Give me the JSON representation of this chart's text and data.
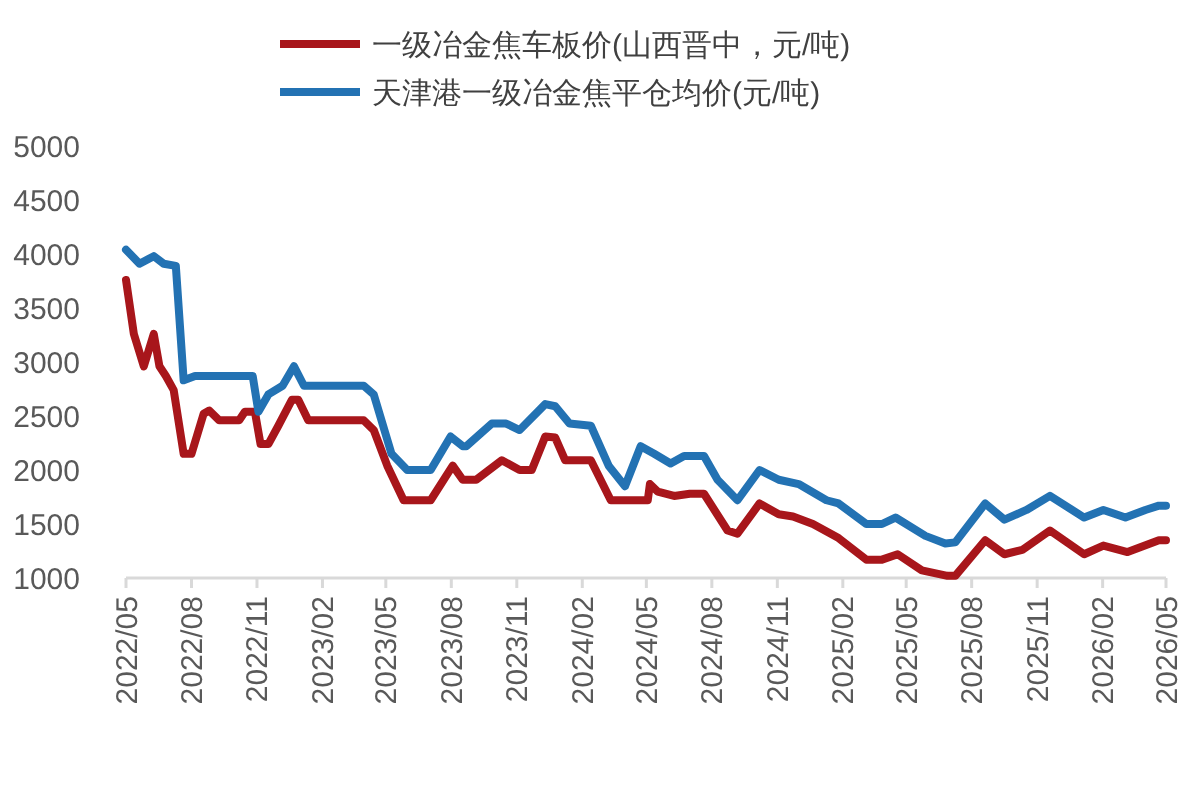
{
  "chart_data": {
    "type": "line",
    "legend": "top",
    "grid": false,
    "line_style": "solid",
    "marker": "none",
    "xlim": [
      "2022-05-01",
      "2026-05-01"
    ],
    "xticks": [
      {
        "value": "2022-05-01",
        "label": "2022/05"
      },
      {
        "value": "2022-08-01",
        "label": "2022/08"
      },
      {
        "value": "2022-11-01",
        "label": "2022/11"
      },
      {
        "value": "2023-02-01",
        "label": "2023/02"
      },
      {
        "value": "2023-05-01",
        "label": "2023/05"
      },
      {
        "value": "2023-08-01",
        "label": "2023/08"
      },
      {
        "value": "2023-11-01",
        "label": "2023/11"
      },
      {
        "value": "2024-02-01",
        "label": "2024/02"
      },
      {
        "value": "2024-05-01",
        "label": "2024/05"
      },
      {
        "value": "2024-08-01",
        "label": "2024/08"
      },
      {
        "value": "2024-11-01",
        "label": "2024/11"
      },
      {
        "value": "2025-02-01",
        "label": "2025/02"
      },
      {
        "value": "2025-05-01",
        "label": "2025/05"
      },
      {
        "value": "2025-08-01",
        "label": "2025/08"
      },
      {
        "value": "2025-11-01",
        "label": "2025/11"
      },
      {
        "value": "2026-02-01",
        "label": "2026/02"
      },
      {
        "value": "2026-05-01",
        "label": "2026/05"
      }
    ],
    "ylim": [
      1000,
      5000
    ],
    "yticks": [
      1000,
      1500,
      2000,
      2500,
      3000,
      3500,
      4000,
      4500,
      5000
    ],
    "series": [
      {
        "name": "一级冶金焦车板价(山西晋中，元/吨)",
        "color": "#a8161b",
        "x": [
          "2022-05-01",
          "2022-05-12",
          "2022-05-26",
          "2022-06-09",
          "2022-06-17",
          "2022-06-26",
          "2022-07-07",
          "2022-07-21",
          "2022-08-01",
          "2022-08-18",
          "2022-08-26",
          "2022-09-09",
          "2022-10-07",
          "2022-10-15",
          "2022-10-29",
          "2022-11-06",
          "2022-11-17",
          "2022-12-01",
          "2022-12-20",
          "2022-12-29",
          "2023-01-12",
          "2023-03-31",
          "2023-04-14",
          "2023-05-03",
          "2023-05-26",
          "2023-07-03",
          "2023-08-03",
          "2023-08-17",
          "2023-09-05",
          "2023-10-11",
          "2023-11-05",
          "2023-11-22",
          "2023-12-11",
          "2023-12-25",
          "2024-01-08",
          "2024-02-13",
          "2024-03-12",
          "2024-05-03",
          "2024-05-06",
          "2024-05-17",
          "2024-06-09",
          "2024-07-01",
          "2024-07-21",
          "2024-08-23",
          "2024-09-06",
          "2024-10-07",
          "2024-11-03",
          "2024-11-23",
          "2024-12-21",
          "2025-01-26",
          "2025-03-06",
          "2025-03-28",
          "2025-04-19",
          "2025-05-23",
          "2025-06-28",
          "2025-07-09",
          "2025-08-20",
          "2025-09-16",
          "2025-10-11",
          "2025-11-19",
          "2026-01-06",
          "2026-02-02",
          "2026-03-08",
          "2026-04-21",
          "2026-05-01"
        ],
        "values": [
          3760,
          3260,
          2960,
          3260,
          2960,
          2870,
          2740,
          2150,
          2150,
          2520,
          2550,
          2460,
          2460,
          2540,
          2540,
          2240,
          2240,
          2410,
          2650,
          2650,
          2460,
          2460,
          2370,
          2040,
          1720,
          1720,
          2040,
          1910,
          1910,
          2090,
          2000,
          2000,
          2310,
          2300,
          2090,
          2090,
          1720,
          1720,
          1870,
          1800,
          1760,
          1780,
          1780,
          1440,
          1410,
          1690,
          1590,
          1570,
          1500,
          1370,
          1170,
          1170,
          1220,
          1070,
          1020,
          1020,
          1350,
          1220,
          1260,
          1440,
          1220,
          1300,
          1240,
          1350,
          1350
        ]
      },
      {
        "name": "天津港一级冶金焦平仓均价(元/吨)",
        "color": "#2372b3",
        "x": [
          "2022-05-01",
          "2022-05-20",
          "2022-06-09",
          "2022-06-23",
          "2022-07-10",
          "2022-07-21",
          "2022-08-06",
          "2022-10-26",
          "2022-11-03",
          "2022-11-17",
          "2022-12-07",
          "2022-12-23",
          "2023-01-06",
          "2023-03-31",
          "2023-04-14",
          "2023-05-09",
          "2023-05-31",
          "2023-07-03",
          "2023-07-31",
          "2023-08-17",
          "2023-08-22",
          "2023-09-27",
          "2023-10-17",
          "2023-11-05",
          "2023-12-11",
          "2023-12-25",
          "2024-01-14",
          "2024-02-13",
          "2024-03-09",
          "2024-04-01",
          "2024-04-23",
          "2024-05-12",
          "2024-06-04",
          "2024-06-23",
          "2024-07-21",
          "2024-08-09",
          "2024-09-06",
          "2024-10-07",
          "2024-11-03",
          "2024-12-01",
          "2025-01-09",
          "2025-01-26",
          "2025-03-06",
          "2025-03-28",
          "2025-04-16",
          "2025-05-28",
          "2025-06-25",
          "2025-07-09",
          "2025-08-20",
          "2025-09-16",
          "2025-10-17",
          "2025-11-19",
          "2026-01-06",
          "2026-02-02",
          "2026-03-05",
          "2026-04-02",
          "2026-04-21",
          "2026-05-01"
        ],
        "values": [
          4040,
          3910,
          3980,
          3910,
          3890,
          2830,
          2870,
          2870,
          2540,
          2700,
          2780,
          2960,
          2780,
          2780,
          2700,
          2150,
          2000,
          2000,
          2310,
          2220,
          2220,
          2430,
          2430,
          2370,
          2610,
          2590,
          2430,
          2410,
          2040,
          1850,
          2220,
          2150,
          2060,
          2130,
          2130,
          1910,
          1720,
          2000,
          1910,
          1870,
          1720,
          1690,
          1500,
          1500,
          1560,
          1390,
          1320,
          1330,
          1690,
          1540,
          1630,
          1760,
          1560,
          1630,
          1560,
          1630,
          1670,
          1670
        ]
      }
    ]
  }
}
